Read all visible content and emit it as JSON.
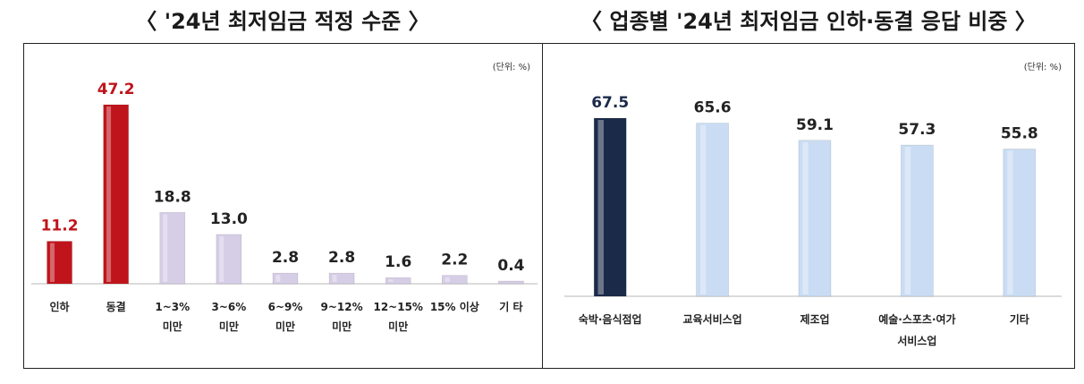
{
  "chart_data": [
    {
      "type": "bar",
      "title": "〈 '24년 최저임금 적정  수준 〉",
      "unit_label": "(단위: %)",
      "categories": [
        [
          "인하"
        ],
        [
          "동결"
        ],
        [
          "1~3%",
          "미만"
        ],
        [
          "3~6%",
          "미만"
        ],
        [
          "6~9%",
          "미만"
        ],
        [
          "9~12%",
          "미만"
        ],
        [
          "12~15%",
          "미만"
        ],
        [
          "15% 이상"
        ],
        [
          "기 타"
        ]
      ],
      "values": [
        11.2,
        47.2,
        18.8,
        13.0,
        2.8,
        2.8,
        1.6,
        2.2,
        0.4
      ],
      "value_labels": [
        "11.2",
        "47.2",
        "18.8",
        "13.0",
        "2.8",
        "2.8",
        "1.6",
        "2.2",
        "0.4"
      ],
      "bar_colors": [
        "#c0141c",
        "#c0141c",
        "#d6cde6",
        "#d6cde6",
        "#d6cde6",
        "#d6cde6",
        "#d6cde6",
        "#d6cde6",
        "#d6cde6"
      ],
      "label_colors": [
        "#c0141c",
        "#c0141c",
        "#222222",
        "#222222",
        "#222222",
        "#222222",
        "#222222",
        "#222222",
        "#222222"
      ],
      "ylim": [
        0,
        47.2
      ]
    },
    {
      "type": "bar",
      "title": "〈 업종별 '24년 최저임금 인하·동결 응답 비중 〉",
      "unit_label": "(단위: %)",
      "categories": [
        [
          "숙박·음식점업"
        ],
        [
          "교육서비스업"
        ],
        [
          "제조업"
        ],
        [
          "예술·스포츠·여가",
          "서비스업"
        ],
        [
          "기타"
        ]
      ],
      "values": [
        67.5,
        65.6,
        59.1,
        57.3,
        55.8
      ],
      "value_labels": [
        "67.5",
        "65.6",
        "59.1",
        "57.3",
        "55.8"
      ],
      "bar_colors": [
        "#1c2a4a",
        "#c9dcf3",
        "#c9dcf3",
        "#c9dcf3",
        "#c9dcf3"
      ],
      "label_colors": [
        "#1c2a4a",
        "#222222",
        "#222222",
        "#222222",
        "#222222"
      ],
      "ylim": [
        0,
        67.5
      ]
    }
  ]
}
